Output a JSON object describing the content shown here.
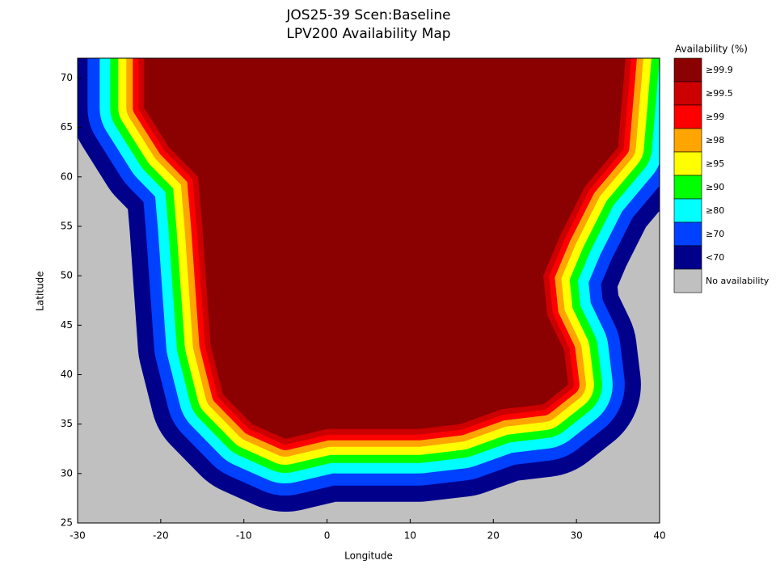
{
  "chart_data": {
    "type": "map",
    "title": [
      "JOS25-39 Scen:Baseline",
      "LPV200 Availability Map"
    ],
    "xlabel": "Longitude",
    "ylabel": "Latitude",
    "xlim": [
      -30,
      40
    ],
    "ylim": [
      25,
      72
    ],
    "xticks": [
      -30,
      -20,
      -10,
      0,
      10,
      20,
      30,
      40
    ],
    "yticks": [
      25,
      30,
      35,
      40,
      45,
      50,
      55,
      60,
      65,
      70
    ],
    "legend": {
      "title": "Availability (%)",
      "position": "right",
      "entries": [
        {
          "label": "≥99.9",
          "color": "#8b0000"
        },
        {
          "label": "≥99.5",
          "color": "#cc0000"
        },
        {
          "label": "≥99",
          "color": "#ff0000"
        },
        {
          "label": "≥98",
          "color": "#ffa500"
        },
        {
          "label": "≥95",
          "color": "#ffff00"
        },
        {
          "label": "≥90",
          "color": "#00ff00"
        },
        {
          "label": "≥80",
          "color": "#00ffff"
        },
        {
          "label": "≥70",
          "color": "#0040ff"
        },
        {
          "label": "<70",
          "color": "#00008b"
        },
        {
          "label": "No availability",
          "color": "#c0c0c0"
        }
      ]
    }
  }
}
